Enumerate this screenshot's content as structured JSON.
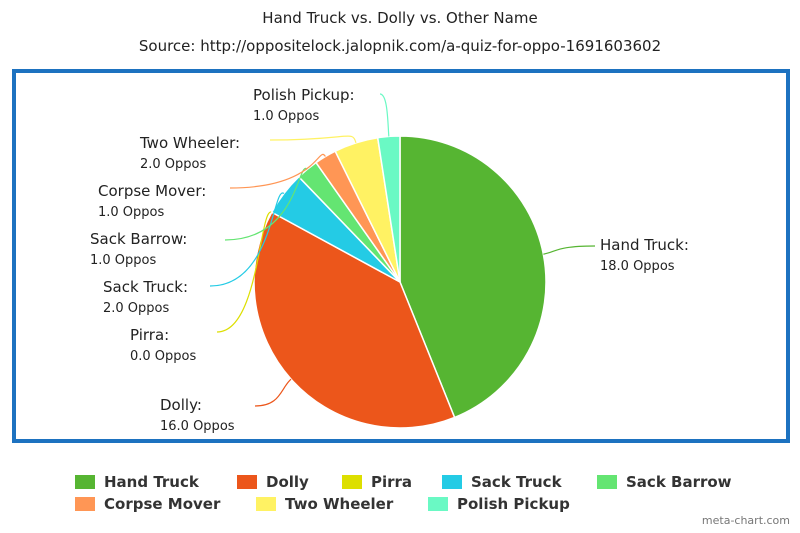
{
  "chart_data": {
    "type": "pie",
    "title": "Hand Truck vs. Dolly vs. Other Name",
    "subtitle": "Source: http://oppositelock.jalopnik.com/a-quiz-for-oppo-1691603602",
    "unit": "Oppos",
    "slices": [
      {
        "name": "Hand Truck",
        "value": 18.0,
        "value_label": "18.0 Oppos",
        "color": "#56b532"
      },
      {
        "name": "Dolly",
        "value": 16.0,
        "value_label": "16.0 Oppos",
        "color": "#ec561b"
      },
      {
        "name": "Pirra",
        "value": 0.0,
        "value_label": "0.0 Oppos",
        "color": "#dddf00"
      },
      {
        "name": "Sack Truck",
        "value": 2.0,
        "value_label": "2.0 Oppos",
        "color": "#24cbe5"
      },
      {
        "name": "Sack Barrow",
        "value": 1.0,
        "value_label": "1.0 Oppos",
        "color": "#64e572"
      },
      {
        "name": "Corpse Mover",
        "value": 1.0,
        "value_label": "1.0 Oppos",
        "color": "#ff9655"
      },
      {
        "name": "Two Wheeler",
        "value": 2.0,
        "value_label": "2.0 Oppos",
        "color": "#fff263"
      },
      {
        "name": "Polish Pickup",
        "value": 1.0,
        "value_label": "1.0 Oppos",
        "color": "#6af9c4"
      }
    ],
    "legend_position": "bottom",
    "frame_color": "#1d72c0"
  },
  "credit": "meta-chart.com"
}
